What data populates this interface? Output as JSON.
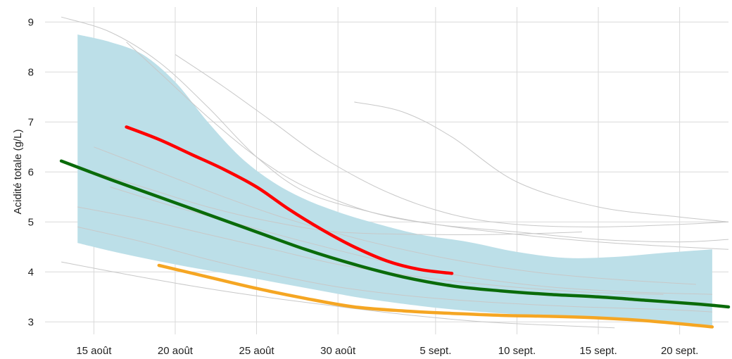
{
  "chart_data": {
    "type": "line",
    "title": "",
    "xlabel": "",
    "ylabel": "Acidité totale (g/L)",
    "x_tick_labels": [
      "15 août",
      "20 août",
      "25 août",
      "30 août",
      "5 sept.",
      "10 sept.",
      "15 sept.",
      "20 sept."
    ],
    "x_tick_dates": [
      "2024-08-15",
      "2024-08-20",
      "2024-08-25",
      "2024-08-30",
      "2024-09-05",
      "2024-09-10",
      "2024-09-15",
      "2024-09-20"
    ],
    "y_ticks": [
      3,
      4,
      5,
      6,
      7,
      8,
      9
    ],
    "xlim": [
      "2024-08-12",
      "2024-09-23"
    ],
    "ylim": [
      2.75,
      9.3
    ],
    "grid": true,
    "colors": {
      "band": "#bcdfe8",
      "background_lines": "#c8c8c8",
      "green": "#0a6b0a",
      "red": "#ff0000",
      "orange": "#f5a623",
      "grid": "#d9d9d9"
    },
    "band": {
      "x": [
        "2024-08-14",
        "2024-08-16",
        "2024-08-18",
        "2024-08-20",
        "2024-08-22",
        "2024-08-24",
        "2024-08-26",
        "2024-08-28",
        "2024-08-30",
        "2024-09-01",
        "2024-09-04",
        "2024-09-07",
        "2024-09-10",
        "2024-09-13",
        "2024-09-16",
        "2024-09-19",
        "2024-09-22"
      ],
      "upper": [
        8.75,
        8.6,
        8.35,
        7.8,
        7.0,
        6.3,
        5.8,
        5.45,
        5.2,
        5.0,
        4.75,
        4.6,
        4.4,
        4.28,
        4.3,
        4.38,
        4.45
      ],
      "lower": [
        4.58,
        4.42,
        4.28,
        4.15,
        4.03,
        3.92,
        3.8,
        3.68,
        3.56,
        3.45,
        3.32,
        3.22,
        3.15,
        3.1,
        3.05,
        3.0,
        2.9
      ]
    },
    "series": [
      {
        "color": "#0a6b0a",
        "x": [
          "2024-08-13",
          "2024-08-16",
          "2024-08-19",
          "2024-08-22",
          "2024-08-25",
          "2024-08-28",
          "2024-08-31",
          "2024-09-03",
          "2024-09-06",
          "2024-09-09",
          "2024-09-12",
          "2024-09-15",
          "2024-09-18",
          "2024-09-21",
          "2024-09-23"
        ],
        "values": [
          6.22,
          5.85,
          5.5,
          5.15,
          4.8,
          4.45,
          4.15,
          3.9,
          3.72,
          3.62,
          3.55,
          3.5,
          3.43,
          3.36,
          3.3
        ]
      },
      {
        "color": "#ff0000",
        "x": [
          "2024-08-17",
          "2024-08-19",
          "2024-08-21",
          "2024-08-23",
          "2024-08-25",
          "2024-08-27",
          "2024-08-29",
          "2024-08-31",
          "2024-09-02",
          "2024-09-04",
          "2024-09-06"
        ],
        "values": [
          6.9,
          6.65,
          6.35,
          6.05,
          5.7,
          5.25,
          4.85,
          4.5,
          4.22,
          4.05,
          3.97
        ]
      },
      {
        "color": "#f5a623",
        "x": [
          "2024-08-19",
          "2024-08-22",
          "2024-08-25",
          "2024-08-28",
          "2024-08-31",
          "2024-09-03",
          "2024-09-06",
          "2024-09-09",
          "2024-09-12",
          "2024-09-15",
          "2024-09-18",
          "2024-09-22"
        ],
        "values": [
          4.13,
          3.9,
          3.67,
          3.47,
          3.3,
          3.22,
          3.17,
          3.13,
          3.11,
          3.08,
          3.02,
          2.9
        ]
      }
    ],
    "background_series": [
      {
        "x": [
          "2024-08-13",
          "2024-08-16",
          "2024-08-19",
          "2024-08-22",
          "2024-08-25",
          "2024-08-28",
          "2024-09-01",
          "2024-09-05",
          "2024-09-10",
          "2024-09-15",
          "2024-09-20",
          "2024-09-23"
        ],
        "values": [
          9.1,
          8.8,
          8.2,
          7.3,
          6.3,
          5.6,
          5.2,
          4.95,
          4.75,
          4.6,
          4.5,
          4.45
        ]
      },
      {
        "x": [
          "2024-08-17",
          "2024-08-19",
          "2024-08-22",
          "2024-08-25",
          "2024-08-28",
          "2024-09-01",
          "2024-09-05",
          "2024-09-10",
          "2024-09-15",
          "2024-09-20",
          "2024-09-23"
        ],
        "values": [
          8.6,
          8.0,
          7.1,
          6.3,
          5.7,
          5.2,
          4.95,
          4.8,
          4.65,
          4.6,
          4.65
        ]
      },
      {
        "x": [
          "2024-08-20",
          "2024-08-23",
          "2024-08-26",
          "2024-08-29",
          "2024-09-02",
          "2024-09-06",
          "2024-09-10",
          "2024-09-15",
          "2024-09-20",
          "2024-09-23"
        ],
        "values": [
          8.35,
          7.7,
          7.0,
          6.3,
          5.6,
          5.15,
          4.95,
          4.9,
          4.95,
          5.0
        ]
      },
      {
        "x": [
          "2024-08-31",
          "2024-09-03",
          "2024-09-06",
          "2024-09-10",
          "2024-09-15",
          "2024-09-20",
          "2024-09-23"
        ],
        "values": [
          7.4,
          7.2,
          6.7,
          5.8,
          5.3,
          5.1,
          5.0
        ]
      },
      {
        "x": [
          "2024-08-14",
          "2024-08-18",
          "2024-08-22",
          "2024-08-26",
          "2024-08-30",
          "2024-09-04",
          "2024-09-09",
          "2024-09-14"
        ],
        "values": [
          6.1,
          5.7,
          5.3,
          5.0,
          4.8,
          4.75,
          4.75,
          4.8
        ]
      },
      {
        "x": [
          "2024-08-14",
          "2024-08-18",
          "2024-08-22",
          "2024-08-26",
          "2024-08-30",
          "2024-09-04",
          "2024-09-09",
          "2024-09-14",
          "2024-09-19"
        ],
        "values": [
          5.3,
          5.05,
          4.75,
          4.45,
          4.15,
          3.9,
          3.72,
          3.6,
          3.55
        ]
      },
      {
        "x": [
          "2024-08-14",
          "2024-08-18",
          "2024-08-22",
          "2024-08-26",
          "2024-08-30",
          "2024-09-04",
          "2024-09-09",
          "2024-09-14",
          "2024-09-19",
          "2024-09-22"
        ],
        "values": [
          4.9,
          4.6,
          4.25,
          3.95,
          3.7,
          3.5,
          3.38,
          3.3,
          3.25,
          3.2
        ]
      },
      {
        "x": [
          "2024-08-13",
          "2024-08-17",
          "2024-08-21",
          "2024-08-25",
          "2024-08-29",
          "2024-09-03",
          "2024-09-08",
          "2024-09-13",
          "2024-09-16"
        ],
        "values": [
          4.2,
          3.95,
          3.72,
          3.52,
          3.35,
          3.15,
          3.0,
          2.92,
          2.88
        ]
      },
      {
        "x": [
          "2024-08-16",
          "2024-08-20",
          "2024-08-24",
          "2024-08-28",
          "2024-09-02",
          "2024-09-07",
          "2024-09-12",
          "2024-09-17",
          "2024-09-22"
        ],
        "values": [
          5.7,
          5.3,
          4.95,
          4.6,
          4.2,
          3.9,
          3.7,
          3.6,
          3.55
        ]
      },
      {
        "x": [
          "2024-08-15",
          "2024-08-19",
          "2024-08-23",
          "2024-08-27",
          "2024-09-01",
          "2024-09-06",
          "2024-09-11",
          "2024-09-16",
          "2024-09-21"
        ],
        "values": [
          6.5,
          6.0,
          5.5,
          5.05,
          4.6,
          4.25,
          4.0,
          3.85,
          3.75
        ]
      }
    ]
  }
}
